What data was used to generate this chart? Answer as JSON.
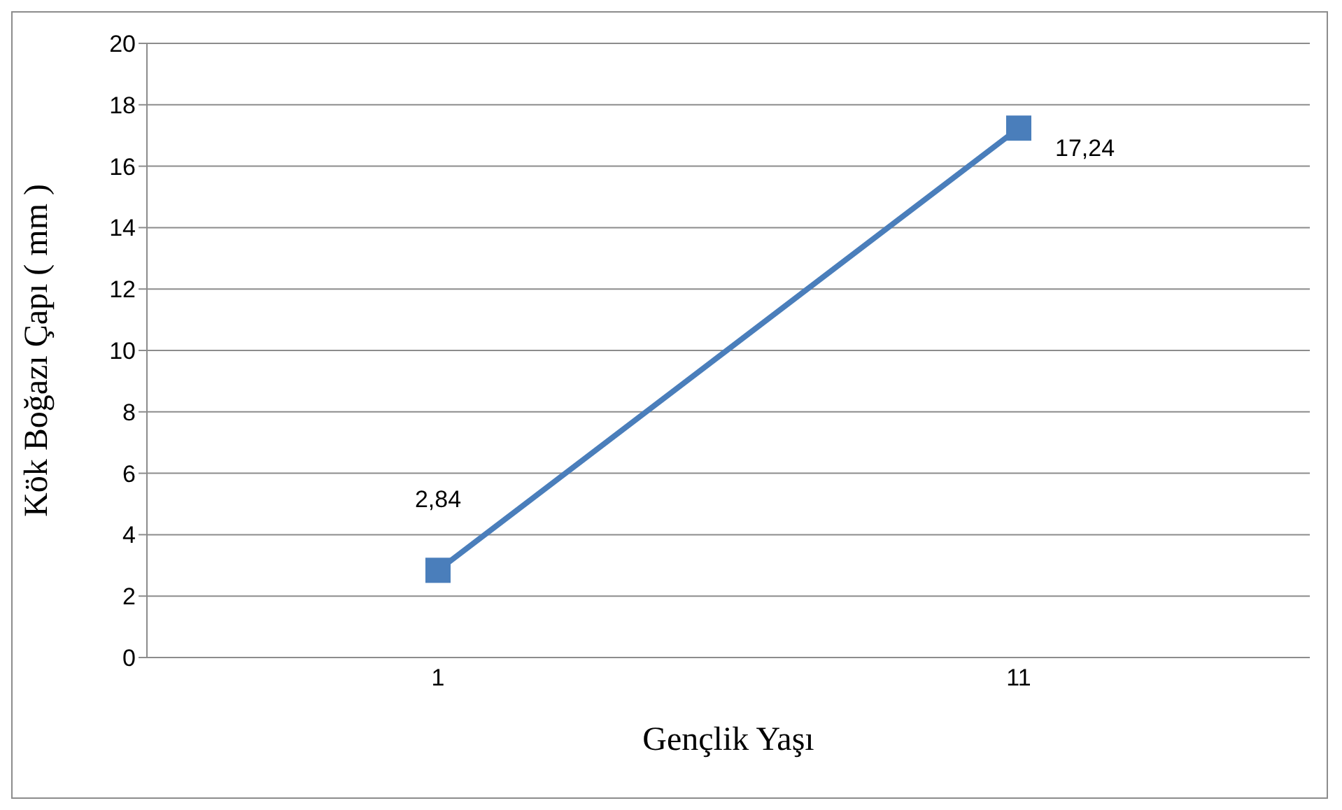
{
  "chart_data": {
    "type": "line",
    "xlabel": "Gençlik Yaşı",
    "ylabel": "Kök Boğazı Çapı ( mm )",
    "categories": [
      "1",
      "11"
    ],
    "series": [
      {
        "color": "#4a7ebb",
        "values": [
          2.84,
          17.24
        ],
        "value_labels": [
          "2,84",
          "17,24"
        ]
      }
    ],
    "ylim": [
      0,
      20
    ],
    "yticks": [
      0,
      2,
      4,
      6,
      8,
      10,
      12,
      14,
      16,
      18,
      20
    ],
    "grid": "y",
    "marker": "square",
    "line_style": "solid",
    "legend": false
  }
}
